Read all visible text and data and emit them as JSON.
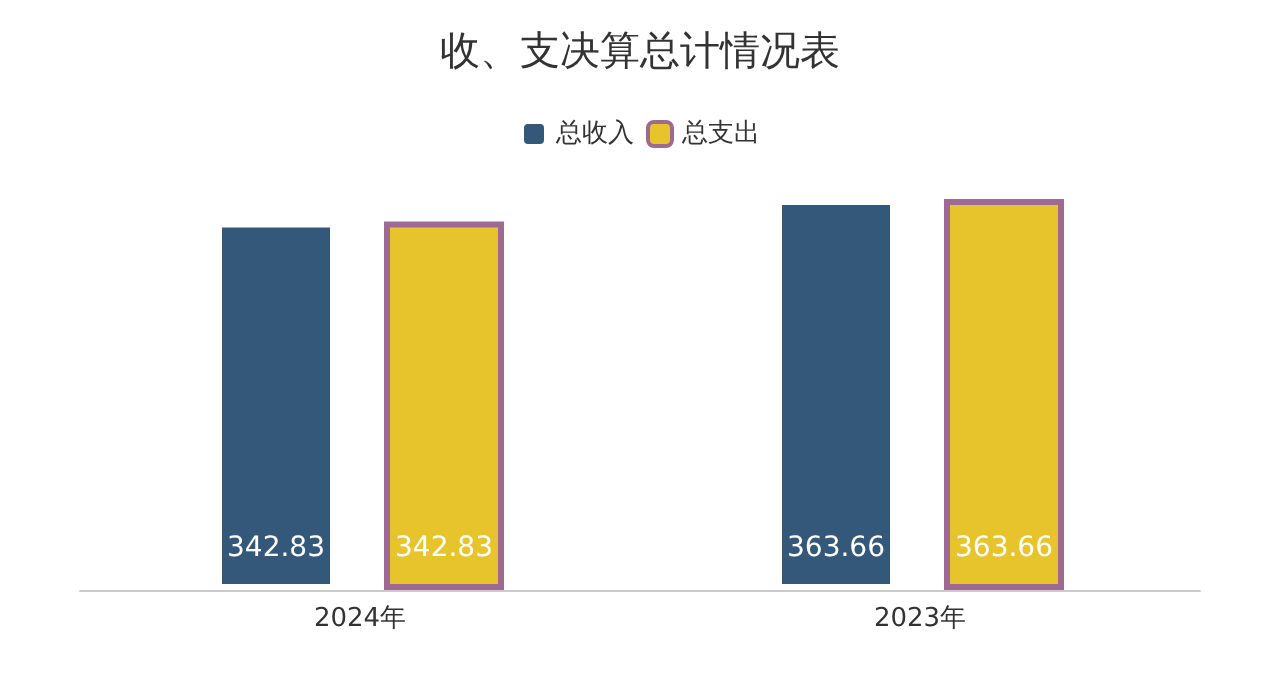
{
  "chart_data": {
    "type": "bar",
    "title": "收、支决算总计情况表",
    "categories": [
      "2024年",
      "2023年"
    ],
    "series": [
      {
        "name": "总收入",
        "color": "#34587a",
        "values": [
          342.83,
          363.66
        ]
      },
      {
        "name": "总支出",
        "color": "#e8c42c",
        "values": [
          342.83,
          363.66
        ]
      }
    ],
    "tick_labels": "x",
    "data_labels": true,
    "legend": "top"
  }
}
